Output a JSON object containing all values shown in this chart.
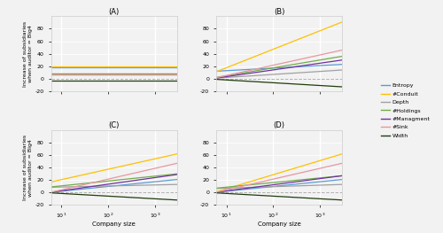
{
  "x_range": [
    6,
    3000
  ],
  "x_ticks": [
    10,
    100,
    1000
  ],
  "ylim": [
    -20,
    100
  ],
  "y_ticks": [
    -20,
    0,
    20,
    40,
    60,
    80
  ],
  "xlabel": "Company size",
  "ylabel": "Increase of subsidiaries\nwhen auditor = Big4",
  "panel_labels": [
    "(A)",
    "(B)",
    "(C)",
    "(D)"
  ],
  "legend_labels": [
    "Entropy",
    "#Conduit",
    "Depth",
    "#Holdings",
    "#Managment",
    "#Sink",
    "Width"
  ],
  "legend_colors": [
    "#5b9bd5",
    "#ffc000",
    "#a0a0a0",
    "#70ad47",
    "#7030a0",
    "#e896a0",
    "#1f3d0c"
  ],
  "background_color": "#f2f2f2",
  "grid_color": "#ffffff",
  "dashed_color": "#b0b0b0",
  "A_values_start": [
    18.5,
    19.0,
    8.5,
    8.5,
    7.5,
    7.0,
    -3.5
  ],
  "A_values_end": [
    18.5,
    19.0,
    8.5,
    8.5,
    7.5,
    7.0,
    -3.5
  ],
  "B_values_start": [
    12.0,
    11.0,
    1.0,
    2.0,
    1.0,
    1.5,
    -1.0
  ],
  "B_values_end": [
    23.0,
    91.0,
    14.0,
    36.0,
    30.0,
    46.0,
    -13.0
  ],
  "C_values_start": [
    0.5,
    17.0,
    8.5,
    9.0,
    0.5,
    0.5,
    -0.5
  ],
  "C_values_end": [
    21.0,
    62.0,
    13.0,
    30.0,
    29.0,
    47.0,
    -12.0
  ],
  "D_values_start": [
    0.5,
    1.0,
    6.5,
    7.0,
    0.5,
    0.5,
    -0.5
  ],
  "D_values_end": [
    21.0,
    62.0,
    13.0,
    27.0,
    27.0,
    47.0,
    -12.0
  ]
}
